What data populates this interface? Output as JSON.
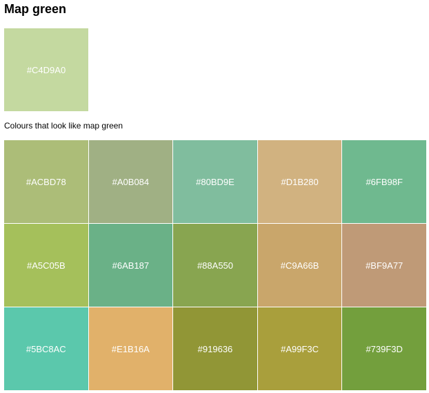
{
  "page": {
    "title": "Map green",
    "main_color": {
      "hex": "#C4D9A0",
      "label": "#C4D9A0"
    },
    "subtitle": "Colours that look like map green"
  },
  "similar_colors": [
    {
      "hex": "#ACBD78",
      "label": "#ACBD78"
    },
    {
      "hex": "#A0B084",
      "label": "#A0B084"
    },
    {
      "hex": "#80BD9E",
      "label": "#80BD9E"
    },
    {
      "hex": "#D1B280",
      "label": "#D1B280"
    },
    {
      "hex": "#6FB98F",
      "label": "#6FB98F"
    },
    {
      "hex": "#A5C05B",
      "label": "#A5C05B"
    },
    {
      "hex": "#6AB187",
      "label": "#6AB187"
    },
    {
      "hex": "#88A550",
      "label": "#88A550"
    },
    {
      "hex": "#C9A66B",
      "label": "#C9A66B"
    },
    {
      "hex": "#BF9A77",
      "label": "#BF9A77"
    },
    {
      "hex": "#5BC8AC",
      "label": "#5BC8AC"
    },
    {
      "hex": "#E1B16A",
      "label": "#E1B16A"
    },
    {
      "hex": "#919636",
      "label": "#919636"
    },
    {
      "hex": "#A99F3C",
      "label": "#A99F3C"
    },
    {
      "hex": "#739F3D",
      "label": "#739F3D"
    }
  ]
}
